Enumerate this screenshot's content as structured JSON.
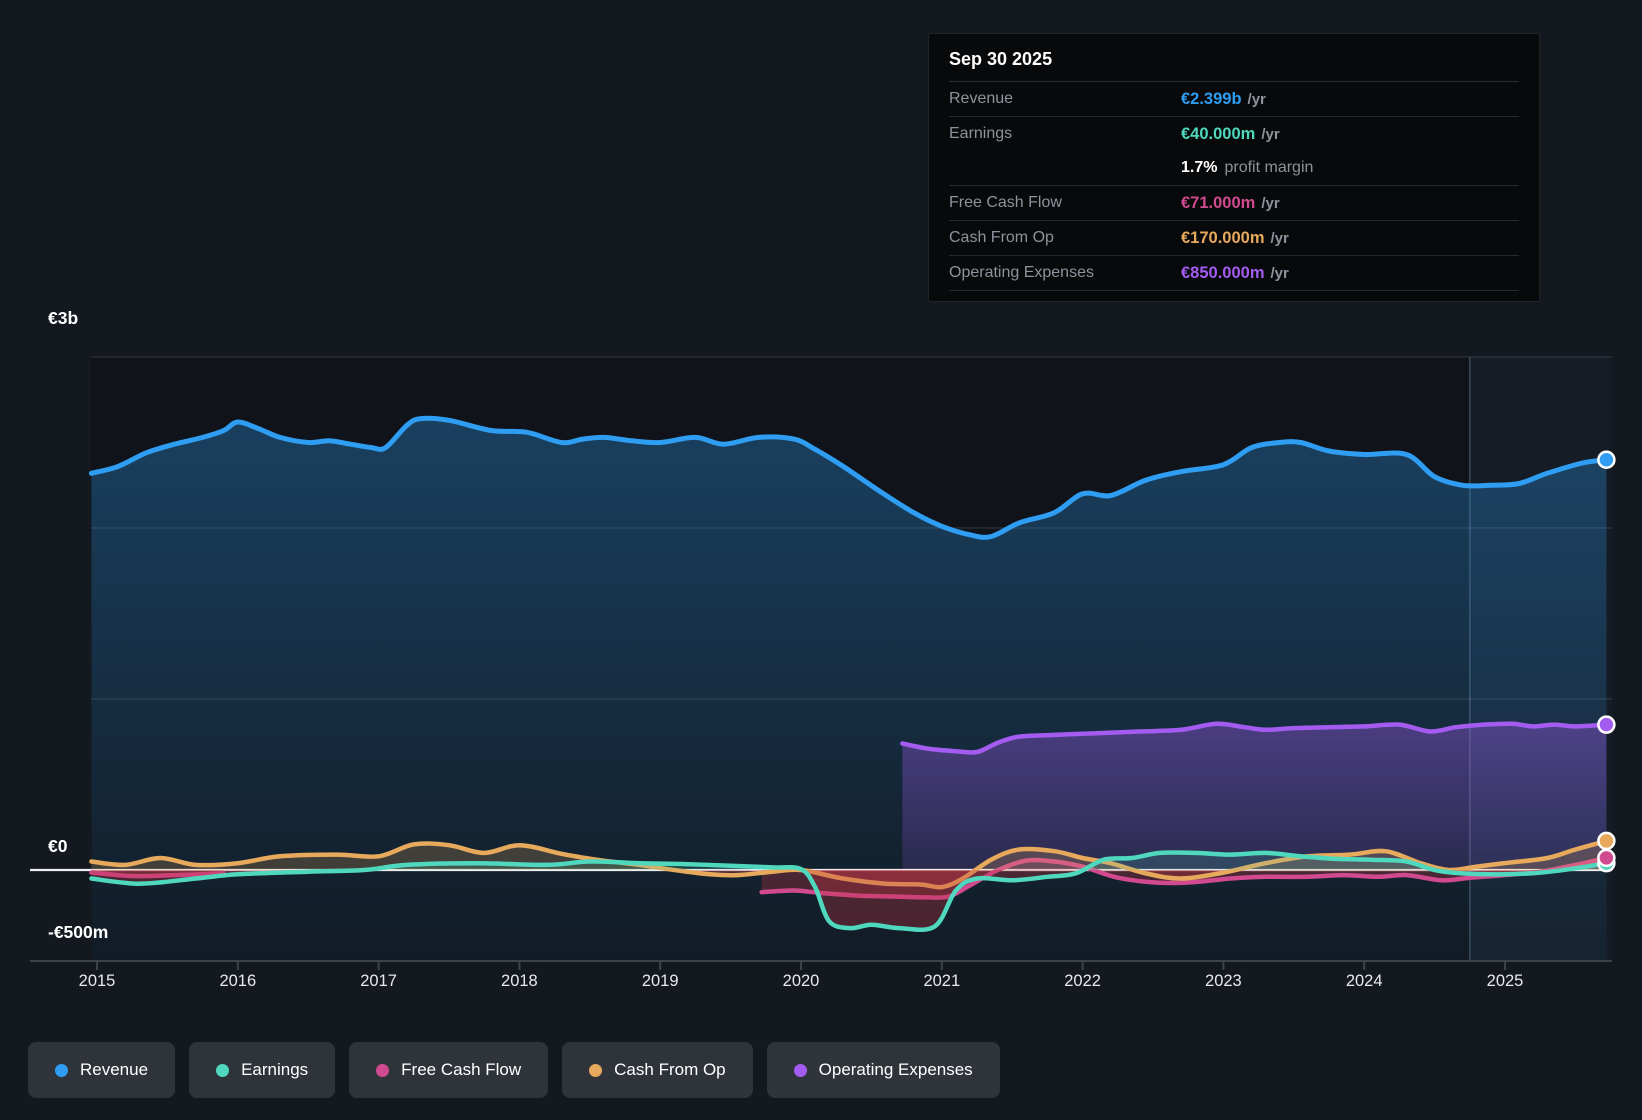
{
  "tooltip": {
    "date": "Sep 30 2025",
    "rows": [
      {
        "id": "revenue",
        "label": "Revenue",
        "value": "€2.399b",
        "suffix": "/yr",
        "color": "#2e9df2"
      },
      {
        "id": "earnings",
        "label": "Earnings",
        "value": "€40.000m",
        "suffix": "/yr",
        "color": "#4fd8bd",
        "extra": {
          "pct": "1.7%",
          "text": "profit margin"
        }
      },
      {
        "id": "fcf",
        "label": "Free Cash Flow",
        "value": "€71.000m",
        "suffix": "/yr",
        "color": "#d1498f"
      },
      {
        "id": "cashop",
        "label": "Cash From Op",
        "value": "€170.000m",
        "suffix": "/yr",
        "color": "#e7a95c"
      },
      {
        "id": "opex",
        "label": "Operating Expenses",
        "value": "€850.000m",
        "suffix": "/yr",
        "color": "#a45cf0"
      }
    ]
  },
  "y_axis": [
    {
      "label": "€3b",
      "value": 3
    },
    {
      "label": "€0",
      "value": 0
    },
    {
      "label": "-€500m",
      "value": -0.5
    }
  ],
  "x_axis": [
    "2015",
    "2016",
    "2017",
    "2018",
    "2019",
    "2020",
    "2021",
    "2022",
    "2023",
    "2024",
    "2025"
  ],
  "legend": [
    {
      "label": "Revenue",
      "color": "#2e9df2"
    },
    {
      "label": "Earnings",
      "color": "#4fd8bd"
    },
    {
      "label": "Free Cash Flow",
      "color": "#d1498f"
    },
    {
      "label": "Cash From Op",
      "color": "#e7a95c"
    },
    {
      "label": "Operating Expenses",
      "color": "#a45cf0"
    }
  ],
  "chart_data": {
    "type": "line",
    "title": "Company financial history and analyst view",
    "unit": "EUR billions per year",
    "x_range": [
      2014.96,
      2025.72
    ],
    "ylim": [
      -0.5,
      3
    ],
    "gridlines_y_values": [
      3,
      2,
      1
    ],
    "zero_line": 0,
    "highlight_from_x": 2024.75,
    "legend_position": "bottom",
    "series": [
      {
        "name": "Revenue",
        "color": "#2e9df2",
        "area": "blue",
        "marker": true,
        "segments": [
          [
            [
              2014.96,
              2.32
            ],
            [
              2015.15,
              2.36
            ],
            [
              2015.35,
              2.44
            ],
            [
              2015.55,
              2.49
            ],
            [
              2015.75,
              2.53
            ],
            [
              2015.9,
              2.57
            ],
            [
              2016.0,
              2.62
            ],
            [
              2016.15,
              2.58
            ],
            [
              2016.3,
              2.53
            ],
            [
              2016.5,
              2.5
            ],
            [
              2016.65,
              2.51
            ],
            [
              2016.8,
              2.49
            ],
            [
              2016.95,
              2.47
            ],
            [
              2017.05,
              2.47
            ],
            [
              2017.2,
              2.6
            ],
            [
              2017.3,
              2.64
            ],
            [
              2017.5,
              2.63
            ],
            [
              2017.8,
              2.57
            ],
            [
              2018.05,
              2.56
            ],
            [
              2018.3,
              2.5
            ],
            [
              2018.45,
              2.52
            ],
            [
              2018.6,
              2.53
            ],
            [
              2018.8,
              2.51
            ],
            [
              2019.0,
              2.5
            ],
            [
              2019.25,
              2.53
            ],
            [
              2019.45,
              2.49
            ],
            [
              2019.7,
              2.53
            ],
            [
              2019.95,
              2.52
            ],
            [
              2020.1,
              2.46
            ],
            [
              2020.3,
              2.36
            ],
            [
              2020.55,
              2.22
            ],
            [
              2020.8,
              2.09
            ],
            [
              2021.0,
              2.01
            ],
            [
              2021.2,
              1.96
            ],
            [
              2021.35,
              1.95
            ],
            [
              2021.55,
              2.03
            ],
            [
              2021.8,
              2.09
            ],
            [
              2022.0,
              2.2
            ],
            [
              2022.2,
              2.19
            ],
            [
              2022.45,
              2.28
            ],
            [
              2022.7,
              2.33
            ],
            [
              2023.0,
              2.37
            ],
            [
              2023.2,
              2.47
            ],
            [
              2023.4,
              2.5
            ],
            [
              2023.55,
              2.5
            ],
            [
              2023.75,
              2.45
            ],
            [
              2024.0,
              2.43
            ],
            [
              2024.3,
              2.43
            ],
            [
              2024.5,
              2.3
            ],
            [
              2024.7,
              2.25
            ],
            [
              2024.9,
              2.25
            ],
            [
              2025.1,
              2.26
            ],
            [
              2025.3,
              2.32
            ],
            [
              2025.55,
              2.38
            ],
            [
              2025.72,
              2.399
            ]
          ]
        ]
      },
      {
        "name": "Earnings",
        "color": "#4fd8bd",
        "area": "split",
        "marker": true,
        "segments": [
          [
            [
              2014.96,
              -0.05
            ],
            [
              2015.3,
              -0.08
            ],
            [
              2015.7,
              -0.05
            ],
            [
              2016.0,
              -0.025
            ],
            [
              2016.5,
              -0.01
            ],
            [
              2016.9,
              0.0
            ],
            [
              2017.2,
              0.03
            ],
            [
              2017.7,
              0.04
            ],
            [
              2018.2,
              0.03
            ],
            [
              2018.5,
              0.05
            ],
            [
              2018.85,
              0.04
            ],
            [
              2019.15,
              0.035
            ],
            [
              2019.5,
              0.025
            ],
            [
              2019.8,
              0.015
            ],
            [
              2020.0,
              0.005
            ],
            [
              2020.1,
              -0.1
            ],
            [
              2020.2,
              -0.3
            ],
            [
              2020.35,
              -0.34
            ],
            [
              2020.5,
              -0.32
            ],
            [
              2020.7,
              -0.34
            ],
            [
              2020.95,
              -0.33
            ],
            [
              2021.1,
              -0.12
            ],
            [
              2021.25,
              -0.05
            ],
            [
              2021.5,
              -0.06
            ],
            [
              2021.75,
              -0.04
            ],
            [
              2021.95,
              -0.02
            ],
            [
              2022.15,
              0.06
            ],
            [
              2022.35,
              0.07
            ],
            [
              2022.55,
              0.1
            ],
            [
              2022.8,
              0.1
            ],
            [
              2023.05,
              0.09
            ],
            [
              2023.3,
              0.1
            ],
            [
              2023.55,
              0.08
            ],
            [
              2023.8,
              0.065
            ],
            [
              2024.05,
              0.06
            ],
            [
              2024.3,
              0.05
            ],
            [
              2024.5,
              0.0
            ],
            [
              2024.7,
              -0.02
            ],
            [
              2025.0,
              -0.025
            ],
            [
              2025.25,
              -0.015
            ],
            [
              2025.5,
              0.01
            ],
            [
              2025.72,
              0.04
            ]
          ]
        ]
      },
      {
        "name": "Free Cash Flow",
        "color": "#d1498f",
        "area": "split",
        "marker": true,
        "segments": [
          [
            [
              2014.96,
              -0.015
            ],
            [
              2015.25,
              -0.035
            ],
            [
              2015.55,
              -0.03
            ],
            [
              2015.9,
              -0.02
            ]
          ],
          [
            [
              2019.72,
              -0.13
            ],
            [
              2019.95,
              -0.12
            ],
            [
              2020.15,
              -0.135
            ],
            [
              2020.4,
              -0.15
            ],
            [
              2020.65,
              -0.155
            ],
            [
              2020.9,
              -0.16
            ],
            [
              2021.05,
              -0.155
            ],
            [
              2021.2,
              -0.09
            ],
            [
              2021.4,
              0.0
            ],
            [
              2021.6,
              0.055
            ],
            [
              2021.8,
              0.05
            ],
            [
              2022.0,
              0.02
            ],
            [
              2022.25,
              -0.045
            ],
            [
              2022.55,
              -0.075
            ],
            [
              2022.8,
              -0.07
            ],
            [
              2023.05,
              -0.05
            ],
            [
              2023.3,
              -0.04
            ],
            [
              2023.6,
              -0.04
            ],
            [
              2023.85,
              -0.03
            ],
            [
              2024.1,
              -0.04
            ],
            [
              2024.3,
              -0.03
            ],
            [
              2024.55,
              -0.06
            ],
            [
              2024.75,
              -0.045
            ],
            [
              2025.0,
              -0.03
            ],
            [
              2025.25,
              -0.01
            ],
            [
              2025.5,
              0.03
            ],
            [
              2025.72,
              0.071
            ]
          ]
        ]
      },
      {
        "name": "Cash From Op",
        "color": "#e7a95c",
        "area": "split",
        "marker": true,
        "segments": [
          [
            [
              2014.96,
              0.05
            ],
            [
              2015.2,
              0.03
            ],
            [
              2015.45,
              0.07
            ],
            [
              2015.7,
              0.03
            ],
            [
              2016.0,
              0.04
            ],
            [
              2016.3,
              0.08
            ],
            [
              2016.7,
              0.09
            ],
            [
              2017.0,
              0.08
            ],
            [
              2017.25,
              0.15
            ],
            [
              2017.5,
              0.145
            ],
            [
              2017.75,
              0.1
            ],
            [
              2018.0,
              0.145
            ],
            [
              2018.3,
              0.095
            ],
            [
              2018.55,
              0.06
            ],
            [
              2018.85,
              0.03
            ],
            [
              2019.1,
              0.0
            ],
            [
              2019.35,
              -0.025
            ],
            [
              2019.55,
              -0.03
            ],
            [
              2019.8,
              -0.01
            ],
            [
              2020.0,
              0.0
            ],
            [
              2020.3,
              -0.05
            ],
            [
              2020.6,
              -0.08
            ],
            [
              2020.85,
              -0.085
            ],
            [
              2021.0,
              -0.1
            ],
            [
              2021.15,
              -0.05
            ],
            [
              2021.35,
              0.06
            ],
            [
              2021.55,
              0.12
            ],
            [
              2021.8,
              0.11
            ],
            [
              2022.0,
              0.07
            ],
            [
              2022.2,
              0.04
            ],
            [
              2022.45,
              -0.02
            ],
            [
              2022.7,
              -0.05
            ],
            [
              2023.0,
              -0.015
            ],
            [
              2023.3,
              0.04
            ],
            [
              2023.6,
              0.08
            ],
            [
              2023.9,
              0.09
            ],
            [
              2024.15,
              0.11
            ],
            [
              2024.4,
              0.04
            ],
            [
              2024.6,
              0.0
            ],
            [
              2024.8,
              0.02
            ],
            [
              2025.05,
              0.045
            ],
            [
              2025.3,
              0.07
            ],
            [
              2025.5,
              0.12
            ],
            [
              2025.72,
              0.17
            ]
          ]
        ]
      },
      {
        "name": "Operating Expenses",
        "color": "#a45cf0",
        "area": "purple",
        "marker": true,
        "segments": [
          [
            [
              2020.72,
              0.74
            ],
            [
              2020.9,
              0.71
            ],
            [
              2021.1,
              0.695
            ],
            [
              2021.25,
              0.69
            ],
            [
              2021.4,
              0.745
            ],
            [
              2021.55,
              0.78
            ],
            [
              2021.8,
              0.79
            ],
            [
              2022.1,
              0.8
            ],
            [
              2022.4,
              0.81
            ],
            [
              2022.7,
              0.82
            ],
            [
              2022.95,
              0.855
            ],
            [
              2023.15,
              0.835
            ],
            [
              2023.3,
              0.82
            ],
            [
              2023.5,
              0.83
            ],
            [
              2023.75,
              0.835
            ],
            [
              2024.0,
              0.84
            ],
            [
              2024.25,
              0.85
            ],
            [
              2024.47,
              0.81
            ],
            [
              2024.65,
              0.835
            ],
            [
              2024.85,
              0.85
            ],
            [
              2025.05,
              0.855
            ],
            [
              2025.2,
              0.84
            ],
            [
              2025.35,
              0.85
            ],
            [
              2025.5,
              0.84
            ],
            [
              2025.72,
              0.85
            ]
          ]
        ]
      }
    ]
  }
}
